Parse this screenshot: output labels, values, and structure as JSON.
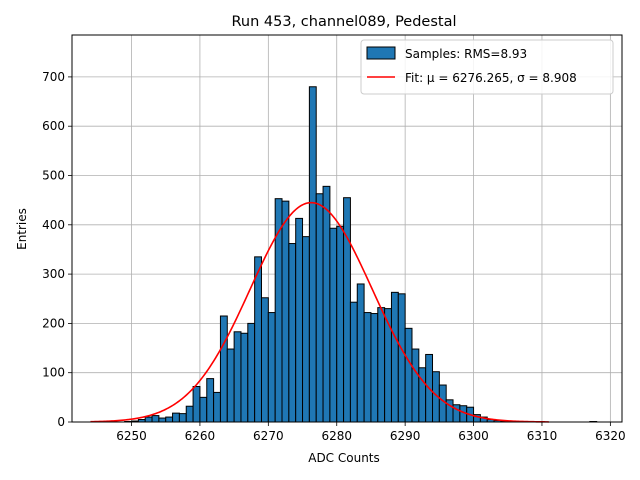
{
  "chart_data": {
    "type": "bar",
    "title": "Run 453, channel089, Pedestal",
    "xlabel": "ADC Counts",
    "ylabel": "Entries",
    "xlim": [
      6241.3,
      6321.7
    ],
    "ylim": [
      0,
      785
    ],
    "xticks": [
      6250,
      6260,
      6270,
      6280,
      6290,
      6300,
      6310,
      6320
    ],
    "yticks": [
      0,
      100,
      200,
      300,
      400,
      500,
      600,
      700
    ],
    "grid": true,
    "legend_position": "top-right",
    "bin_width": 1,
    "series": [
      {
        "name": "Samples: RMS=8.93",
        "type": "histogram",
        "color": "#1f77b4",
        "edge_color": "#000000",
        "bins": [
          6244,
          6245,
          6246,
          6247,
          6248,
          6249,
          6250,
          6251,
          6252,
          6253,
          6254,
          6255,
          6256,
          6257,
          6258,
          6259,
          6260,
          6261,
          6262,
          6263,
          6264,
          6265,
          6266,
          6267,
          6268,
          6269,
          6270,
          6271,
          6272,
          6273,
          6274,
          6275,
          6276,
          6277,
          6278,
          6279,
          6280,
          6281,
          6282,
          6283,
          6284,
          6285,
          6286,
          6287,
          6288,
          6289,
          6290,
          6291,
          6292,
          6293,
          6294,
          6295,
          6296,
          6297,
          6298,
          6299,
          6300,
          6301,
          6302,
          6303,
          6304,
          6305,
          6306,
          6307,
          6308,
          6309,
          6310,
          6311,
          6312,
          6313,
          6314,
          6315,
          6316,
          6317
        ],
        "values": [
          0,
          0,
          0,
          0,
          0,
          1,
          2,
          5,
          10,
          13,
          8,
          10,
          18,
          17,
          32,
          72,
          50,
          88,
          60,
          215,
          148,
          183,
          180,
          200,
          335,
          252,
          222,
          453,
          448,
          362,
          413,
          376,
          680,
          463,
          478,
          393,
          397,
          455,
          243,
          280,
          222,
          220,
          232,
          230,
          263,
          260,
          190,
          148,
          110,
          137,
          102,
          75,
          45,
          35,
          33,
          30,
          15,
          10,
          5,
          3,
          2,
          1,
          1,
          0,
          0,
          0,
          0,
          0,
          0,
          0,
          0,
          0,
          0,
          1
        ]
      },
      {
        "name": "Fit: μ = 6276.265, σ = 8.908",
        "type": "gaussian",
        "color": "#ff0000",
        "mu": 6276.265,
        "sigma": 8.908,
        "amplitude": 445,
        "x_range": [
          6244,
          6311
        ]
      }
    ]
  }
}
